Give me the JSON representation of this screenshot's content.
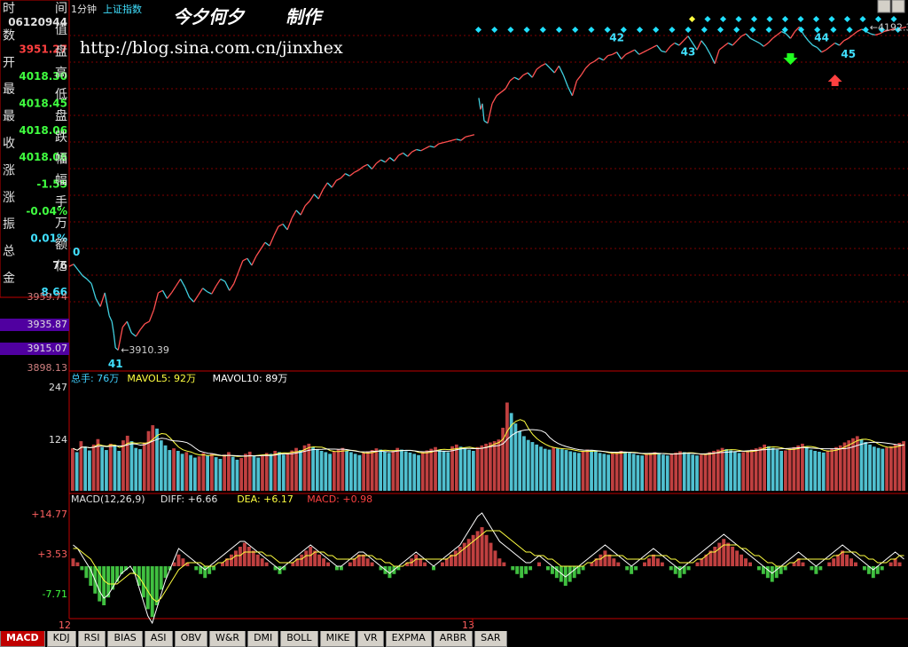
{
  "header": {
    "period": "1分钟",
    "index_name": "上证指数"
  },
  "watermark": {
    "author": "今夕何夕",
    "made": "制作",
    "url": "http://blog.sina.com.cn/jinxhex"
  },
  "info_panel": {
    "rows": [
      {
        "label": "时",
        "value": ""
      },
      {
        "label": "",
        "value": "06120944",
        "color": "#e0e0e0"
      },
      {
        "label": "数",
        "value": ""
      },
      {
        "label": "",
        "value": "3951.27",
        "color": "#ff4040"
      },
      {
        "label": "开",
        "value": ""
      },
      {
        "label": "",
        "value": "4018.30",
        "color": "#40ff40"
      },
      {
        "label": "最",
        "value": ""
      },
      {
        "label": "",
        "value": "4018.45",
        "color": "#40ff40"
      },
      {
        "label": "最",
        "value": ""
      },
      {
        "label": "",
        "value": "4018.06",
        "color": "#40ff40"
      },
      {
        "label": "收",
        "value": ""
      },
      {
        "label": "",
        "value": "4018.06",
        "color": "#40ff40"
      },
      {
        "label": "涨",
        "value": ""
      },
      {
        "label": "",
        "value": "-1.55",
        "color": "#40ff40"
      },
      {
        "label": "涨",
        "value": ""
      },
      {
        "label": "",
        "value": "-0.04%",
        "color": "#40ff40"
      },
      {
        "label": "振",
        "value": ""
      },
      {
        "label": "",
        "value": "0.01%",
        "color": "#40e0ff"
      },
      {
        "label": "总",
        "value": ""
      },
      {
        "label": "",
        "value": "76",
        "color": "#e0e0e0"
      },
      {
        "label": "金",
        "value": ""
      },
      {
        "label": "",
        "value": "8.66",
        "color": "#40e0ff"
      }
    ],
    "right_chars": [
      "间",
      "值",
      "盘",
      "高",
      "低",
      "盘",
      "跌",
      "幅",
      "幅",
      "手",
      "万",
      "额",
      "亿"
    ]
  },
  "chart_data": [
    {
      "type": "line",
      "title": "上证指数 1分钟",
      "y_ticks": [
        "3959.74",
        "3935.87",
        "3915.07",
        "3898.13"
      ],
      "highlight_ticks": [
        "3935.87",
        "3915.07"
      ],
      "low_label": "3910.39",
      "high_label": "4192.38",
      "wave_labels": [
        "0",
        "41",
        "42",
        "43",
        "44",
        "45"
      ],
      "x_ticks": [
        "12",
        "13"
      ],
      "sessions": [
        {
          "name": "12",
          "x": [
            0,
            5,
            10,
            15,
            20,
            25,
            30,
            35,
            40,
            45,
            48,
            50,
            52,
            55,
            60,
            65,
            70,
            75,
            80,
            85,
            90,
            95,
            100,
            105,
            110,
            115,
            120,
            125,
            130,
            135,
            140,
            145,
            150,
            155,
            160,
            165,
            170,
            175,
            180,
            185,
            190,
            195,
            200,
            205,
            210,
            215,
            220,
            225,
            230,
            235,
            240,
            245,
            250,
            255,
            260,
            265,
            270,
            275,
            280,
            285,
            290,
            295,
            300,
            305,
            310,
            315,
            320,
            325,
            330,
            335,
            340,
            345,
            350,
            355,
            360,
            365,
            370,
            375,
            380,
            385,
            390,
            395,
            400,
            405,
            410,
            415,
            420,
            425,
            430,
            435,
            440,
            445,
            450,
            455
          ],
          "y": [
            3983,
            3985,
            3980,
            3975,
            3972,
            3968,
            3955,
            3948,
            3960,
            3940,
            3935,
            3925,
            3912,
            3910,
            3930,
            3935,
            3925,
            3922,
            3928,
            3933,
            3935,
            3945,
            3960,
            3962,
            3955,
            3960,
            3966,
            3972,
            3965,
            3956,
            3952,
            3958,
            3964,
            3961,
            3959,
            3966,
            3972,
            3970,
            3962,
            3968,
            3978,
            3988,
            3990,
            3984,
            3992,
            3998,
            4004,
            4001,
            4010,
            4018,
            4020,
            4015,
            4025,
            4032,
            4028,
            4036,
            4040,
            4046,
            4042,
            4050,
            4056,
            4052,
            4058,
            4060,
            4064,
            4062,
            4065,
            4067,
            4070,
            4072,
            4068,
            4073,
            4076,
            4074,
            4078,
            4075,
            4080,
            4082,
            4079,
            4083,
            4085,
            4084,
            4086,
            4088,
            4087,
            4090,
            4091,
            4092,
            4093,
            4094,
            4093,
            4096,
            4097,
            4098
          ]
        },
        {
          "name": "13",
          "x": [
            460,
            462,
            464,
            466,
            470,
            475,
            480,
            485,
            490,
            495,
            500,
            505,
            510,
            515,
            520,
            525,
            530,
            535,
            540,
            545,
            550,
            555,
            560,
            565,
            570,
            575,
            580,
            585,
            590,
            595,
            600,
            605,
            610,
            615,
            620,
            625,
            630,
            635,
            640,
            645,
            650,
            655,
            660,
            665,
            670,
            675,
            680,
            685,
            690,
            695,
            700,
            705,
            710,
            715,
            720,
            725,
            730,
            735,
            740,
            745,
            750,
            755,
            760,
            765,
            770,
            775,
            780,
            785,
            790,
            795,
            800,
            805,
            810,
            815,
            820,
            825,
            830,
            835,
            840,
            845,
            850,
            855,
            860,
            865,
            870,
            875,
            880,
            885,
            890,
            895,
            900,
            905,
            910,
            915,
            920,
            925,
            930,
            935,
            940
          ],
          "y": [
            4130,
            4120,
            4125,
            4110,
            4108,
            4125,
            4132,
            4135,
            4138,
            4145,
            4148,
            4146,
            4150,
            4152,
            4148,
            4155,
            4158,
            4160,
            4156,
            4152,
            4158,
            4150,
            4140,
            4132,
            4145,
            4150,
            4156,
            4160,
            4162,
            4165,
            4163,
            4167,
            4168,
            4170,
            4164,
            4168,
            4170,
            4172,
            4168,
            4170,
            4172,
            4174,
            4176,
            4171,
            4170,
            4175,
            4178,
            4176,
            4180,
            4184,
            4178,
            4172,
            4180,
            4175,
            4168,
            4160,
            4172,
            4175,
            4178,
            4176,
            4180,
            4184,
            4186,
            4182,
            4180,
            4178,
            4175,
            4178,
            4182,
            4185,
            4188,
            4186,
            4182,
            4188,
            4192,
            4185,
            4180,
            4176,
            4174,
            4170,
            4172,
            4175,
            4178,
            4176,
            4180,
            4182,
            4185,
            4188,
            4190,
            4188,
            4186,
            4185,
            4186,
            4188,
            4189,
            4190,
            4190,
            4191,
            4192
          ]
        }
      ],
      "arrows": [
        {
          "dir": "down",
          "color": "#20ff20"
        },
        {
          "dir": "up",
          "color": "#ff4040"
        }
      ]
    },
    {
      "type": "bar",
      "title": "总手: 76万 MAVOL5: 92万 MAVOL10: 89万",
      "legend": [
        {
          "text": "总手: 76万",
          "color": "#40d0ff"
        },
        {
          "text": "MAVOL5: 92万",
          "color": "#ffff40"
        },
        {
          "text": "MAVOL10: 89万",
          "color": "#ffffff"
        }
      ],
      "y_ticks": [
        "247",
        "124"
      ],
      "ylim": [
        0,
        247
      ],
      "values": [
        101,
        92,
        118,
        105,
        96,
        110,
        123,
        104,
        97,
        112,
        108,
        95,
        120,
        131,
        118,
        102,
        99,
        115,
        142,
        156,
        148,
        120,
        108,
        97,
        101,
        95,
        88,
        92,
        85,
        79,
        82,
        90,
        84,
        88,
        80,
        76,
        86,
        92,
        81,
        74,
        78,
        88,
        93,
        84,
        79,
        83,
        90,
        88,
        95,
        92,
        86,
        89,
        96,
        102,
        97,
        108,
        112,
        104,
        99,
        95,
        92,
        88,
        94,
        98,
        102,
        96,
        92,
        88,
        85,
        90,
        94,
        97,
        101,
        98,
        93,
        90,
        96,
        102,
        98,
        94,
        91,
        88,
        85,
        92,
        96,
        100,
        104,
        98,
        95,
        92,
        106,
        110,
        105,
        101,
        98,
        95,
        104,
        108,
        112,
        115,
        118,
        122,
        150,
        210,
        185,
        160,
        142,
        130,
        121,
        116,
        110,
        105,
        100,
        98,
        103,
        101,
        99,
        97,
        94,
        92,
        90,
        95,
        98,
        96,
        94,
        90,
        88,
        86,
        89,
        92,
        95,
        93,
        90,
        88,
        85,
        84,
        87,
        90,
        92,
        89,
        86,
        84,
        88,
        91,
        94,
        92,
        88,
        86,
        84,
        86,
        89,
        92,
        95,
        98,
        102,
        99,
        96,
        93,
        90,
        92,
        95,
        98,
        101,
        104,
        110,
        106,
        102,
        98,
        95,
        96,
        100,
        104,
        108,
        112,
        104,
        98,
        95,
        93,
        91,
        96,
        100,
        104,
        108,
        115,
        120,
        125,
        130,
        122,
        116,
        110,
        105,
        102,
        100,
        103,
        106,
        110,
        114,
        118
      ]
    },
    {
      "type": "bar",
      "title": "MACD(12,26,9) DIFF: +6.66 DEA: +6.17 MACD: +0.98",
      "legend": [
        {
          "text": "MACD(12,26,9)",
          "color": "#e0e0e0"
        },
        {
          "text": "DIFF: +6.66",
          "color": "#e0e0e0"
        },
        {
          "text": "DEA: +6.17",
          "color": "#ffff40"
        },
        {
          "text": "MACD: +0.98",
          "color": "#ff4040"
        }
      ],
      "y_ticks": [
        "+14.77",
        "+3.53",
        "-7.71"
      ],
      "ylim": [
        -14,
        17
      ],
      "macd": [
        2,
        1,
        -1,
        -3,
        -5,
        -7,
        -9,
        -10,
        -8,
        -6,
        -4,
        -2,
        -1,
        0,
        -2,
        -5,
        -8,
        -11,
        -13,
        -10,
        -6,
        -3,
        -1,
        1,
        3,
        2,
        1,
        0,
        -1,
        -2,
        -3,
        -2,
        -1,
        0,
        1,
        2,
        3,
        4,
        5,
        6,
        5,
        4,
        3,
        2,
        1,
        0,
        -1,
        -2,
        -1,
        0,
        1,
        2,
        3,
        4,
        5,
        4,
        3,
        2,
        1,
        0,
        -1,
        -1,
        0,
        1,
        2,
        3,
        3,
        2,
        1,
        0,
        -1,
        -2,
        -3,
        -2,
        -1,
        0,
        1,
        2,
        3,
        2,
        1,
        0,
        -1,
        0,
        1,
        2,
        3,
        4,
        5,
        6,
        7,
        8,
        9,
        10,
        8,
        6,
        4,
        2,
        1,
        0,
        -1,
        -2,
        -3,
        -2,
        -1,
        0,
        1,
        0,
        -1,
        -2,
        -3,
        -4,
        -5,
        -4,
        -3,
        -2,
        -1,
        0,
        1,
        2,
        3,
        4,
        3,
        2,
        1,
        0,
        -1,
        -2,
        -1,
        0,
        1,
        2,
        3,
        2,
        1,
        0,
        -1,
        -2,
        -3,
        -2,
        -1,
        0,
        1,
        2,
        3,
        4,
        5,
        6,
        7,
        6,
        5,
        4,
        3,
        2,
        1,
        0,
        -1,
        -2,
        -3,
        -4,
        -3,
        -2,
        -1,
        0,
        1,
        2,
        1,
        0,
        -1,
        -2,
        -1,
        0,
        1,
        2,
        3,
        4,
        3,
        2,
        1,
        0,
        -1,
        -2,
        -3,
        -2,
        -1,
        0,
        1,
        2,
        1,
        0
      ],
      "diff": [
        6,
        5,
        3,
        1,
        -1,
        -4,
        -7,
        -9,
        -8,
        -6,
        -4,
        -2,
        -1,
        0,
        -2,
        -6,
        -10,
        -14,
        -16,
        -12,
        -8,
        -4,
        -1,
        2,
        5,
        4,
        3,
        2,
        1,
        0,
        -1,
        0,
        1,
        2,
        3,
        4,
        5,
        6,
        7,
        7,
        6,
        5,
        4,
        3,
        2,
        1,
        0,
        -1,
        0,
        1,
        2,
        3,
        4,
        5,
        6,
        5,
        4,
        3,
        2,
        1,
        0,
        0,
        1,
        2,
        3,
        4,
        4,
        3,
        2,
        1,
        0,
        -1,
        -2,
        -1,
        0,
        1,
        2,
        3,
        4,
        3,
        2,
        1,
        0,
        1,
        2,
        3,
        4,
        5,
        6,
        8,
        10,
        12,
        14,
        15,
        13,
        11,
        9,
        7,
        6,
        5,
        4,
        3,
        2,
        1,
        1,
        2,
        3,
        2,
        1,
        0,
        -1,
        -2,
        -3,
        -2,
        -1,
        0,
        1,
        2,
        3,
        4,
        5,
        6,
        5,
        4,
        3,
        2,
        1,
        0,
        1,
        2,
        3,
        4,
        5,
        4,
        3,
        2,
        1,
        0,
        -1,
        0,
        1,
        2,
        3,
        4,
        5,
        6,
        7,
        8,
        9,
        8,
        7,
        6,
        5,
        4,
        3,
        2,
        1,
        0,
        -1,
        -2,
        -1,
        0,
        1,
        2,
        3,
        4,
        3,
        2,
        1,
        0,
        1,
        2,
        3,
        4,
        5,
        6,
        5,
        4,
        3,
        2,
        1,
        0,
        -1,
        0,
        1,
        2,
        3,
        4,
        3,
        2
      ],
      "dea": [
        5,
        5,
        4,
        3,
        2,
        0,
        -2,
        -4,
        -5,
        -5,
        -5,
        -4,
        -3,
        -2,
        -2,
        -3,
        -5,
        -7,
        -9,
        -10,
        -9,
        -7,
        -5,
        -3,
        -1,
        0,
        1,
        1,
        1,
        1,
        0,
        0,
        0,
        1,
        1,
        2,
        2,
        3,
        3,
        4,
        4,
        4,
        4,
        4,
        3,
        3,
        2,
        1,
        1,
        1,
        1,
        2,
        2,
        3,
        3,
        4,
        4,
        4,
        3,
        3,
        2,
        2,
        2,
        2,
        2,
        3,
        3,
        3,
        3,
        2,
        2,
        1,
        1,
        0,
        0,
        0,
        1,
        1,
        2,
        2,
        2,
        2,
        2,
        2,
        2,
        2,
        3,
        3,
        4,
        5,
        6,
        7,
        8,
        9,
        10,
        10,
        10,
        10,
        9,
        8,
        7,
        6,
        5,
        4,
        4,
        3,
        3,
        3,
        2,
        2,
        1,
        0,
        0,
        0,
        0,
        0,
        0,
        1,
        1,
        2,
        2,
        3,
        3,
        3,
        3,
        3,
        2,
        2,
        2,
        2,
        2,
        3,
        3,
        3,
        3,
        3,
        2,
        2,
        1,
        1,
        1,
        1,
        2,
        2,
        3,
        4,
        4,
        5,
        6,
        6,
        6,
        6,
        5,
        5,
        4,
        3,
        3,
        2,
        1,
        1,
        0,
        0,
        0,
        1,
        1,
        2,
        2,
        2,
        2,
        2,
        2,
        2,
        2,
        3,
        3,
        4,
        4,
        4,
        4,
        3,
        3,
        2,
        2,
        1,
        1,
        1,
        2,
        2,
        3,
        3
      ]
    }
  ],
  "tabs": [
    "MACD",
    "KDJ",
    "RSI",
    "BIAS",
    "ASI",
    "OBV",
    "W&R",
    "DMI",
    "BOLL",
    "MIKE",
    "VR",
    "EXPMA",
    "ARBR",
    "SAR"
  ]
}
